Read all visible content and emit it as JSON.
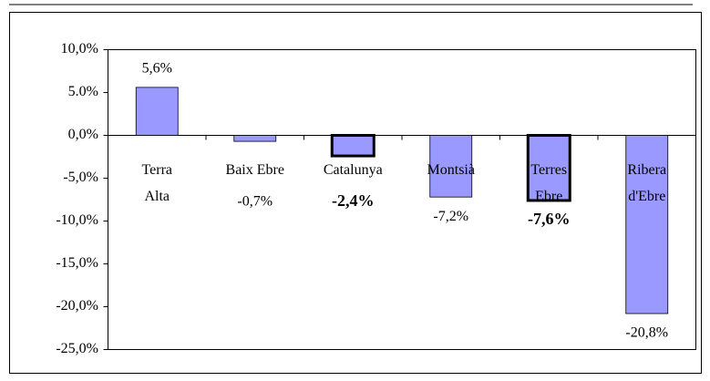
{
  "chart_data": {
    "type": "bar",
    "categories": [
      "Terra\nAlta",
      "Baix Ebre",
      "Catalunya",
      "Montsià",
      "Terres\nEbre",
      "Ribera\nd'Ebre"
    ],
    "values": [
      5.6,
      -0.7,
      -2.4,
      -7.2,
      -7.6,
      -20.8
    ],
    "value_labels": [
      "5,6%",
      "-0,7%",
      "-2,4%",
      "-7,2%",
      "-7,6%",
      "-20,8%"
    ],
    "highlight": [
      false,
      false,
      true,
      false,
      true,
      false
    ],
    "color": "#9999ff",
    "ylim": [
      -25,
      10
    ],
    "yticks": [
      {
        "value": -25,
        "label": "-25,0%"
      },
      {
        "value": -20,
        "label": "-20,0%"
      },
      {
        "value": -15,
        "label": "-15,0%"
      },
      {
        "value": -10,
        "label": "-10,0%"
      },
      {
        "value": -5,
        "label": "-5,0%"
      },
      {
        "value": 0,
        "label": "0,0%"
      },
      {
        "value": 5,
        "label": "5.0%"
      },
      {
        "value": 10,
        "label": "10,0%"
      }
    ]
  }
}
